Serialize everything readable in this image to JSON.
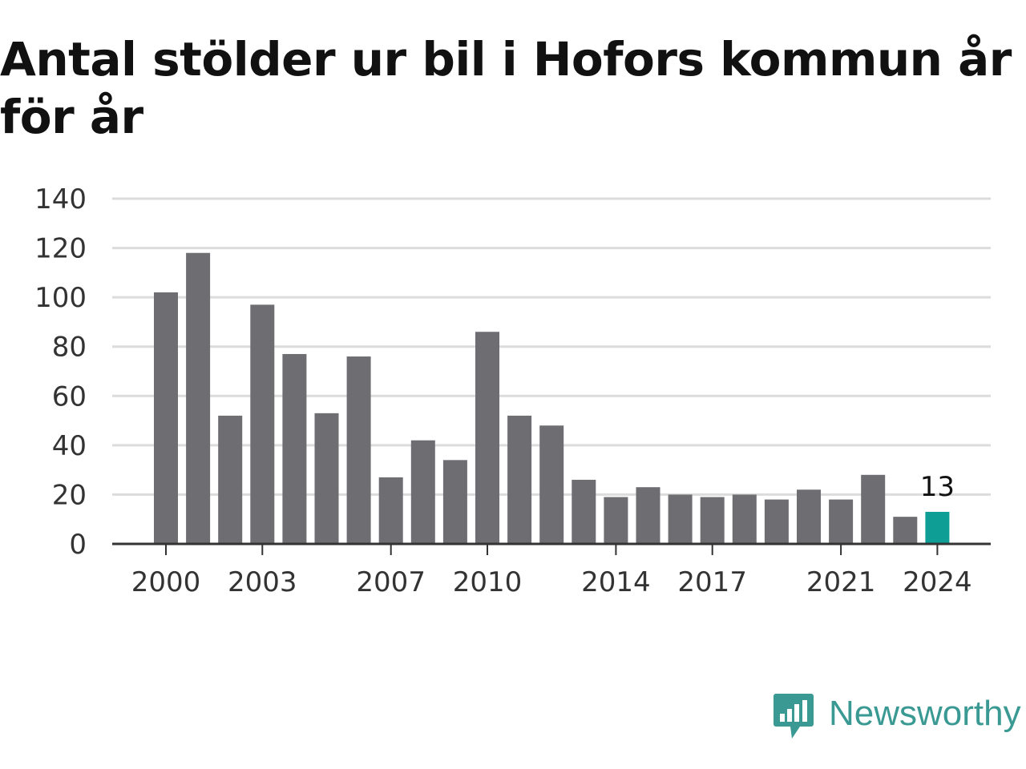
{
  "title": "Antal stölder ur bil i Hofors kommun år för år",
  "brand": {
    "name": "Newsworthy",
    "color": "#3a9a93"
  },
  "colors": {
    "bar": "#6e6d72",
    "highlight": "#0f9e96",
    "grid": "#dcdcdc",
    "axis": "#333333"
  },
  "chart_data": {
    "type": "bar",
    "x": [
      2000,
      2001,
      2002,
      2003,
      2004,
      2005,
      2006,
      2007,
      2008,
      2009,
      2010,
      2011,
      2012,
      2013,
      2014,
      2015,
      2016,
      2017,
      2018,
      2019,
      2020,
      2021,
      2022,
      2023,
      2024
    ],
    "values": [
      102,
      118,
      52,
      97,
      77,
      53,
      76,
      27,
      42,
      34,
      86,
      52,
      48,
      26,
      19,
      23,
      20,
      19,
      20,
      18,
      22,
      18,
      28,
      11,
      13
    ],
    "x_tick_labels": [
      "2000",
      "2003",
      "2007",
      "2010",
      "2014",
      "2017",
      "2021",
      "2024"
    ],
    "y_ticks": [
      0,
      20,
      40,
      60,
      80,
      100,
      120,
      140
    ],
    "ylim": [
      0,
      140
    ],
    "grid": true,
    "highlight": {
      "year": 2024,
      "label": "13"
    },
    "xlabel": "",
    "ylabel": ""
  }
}
